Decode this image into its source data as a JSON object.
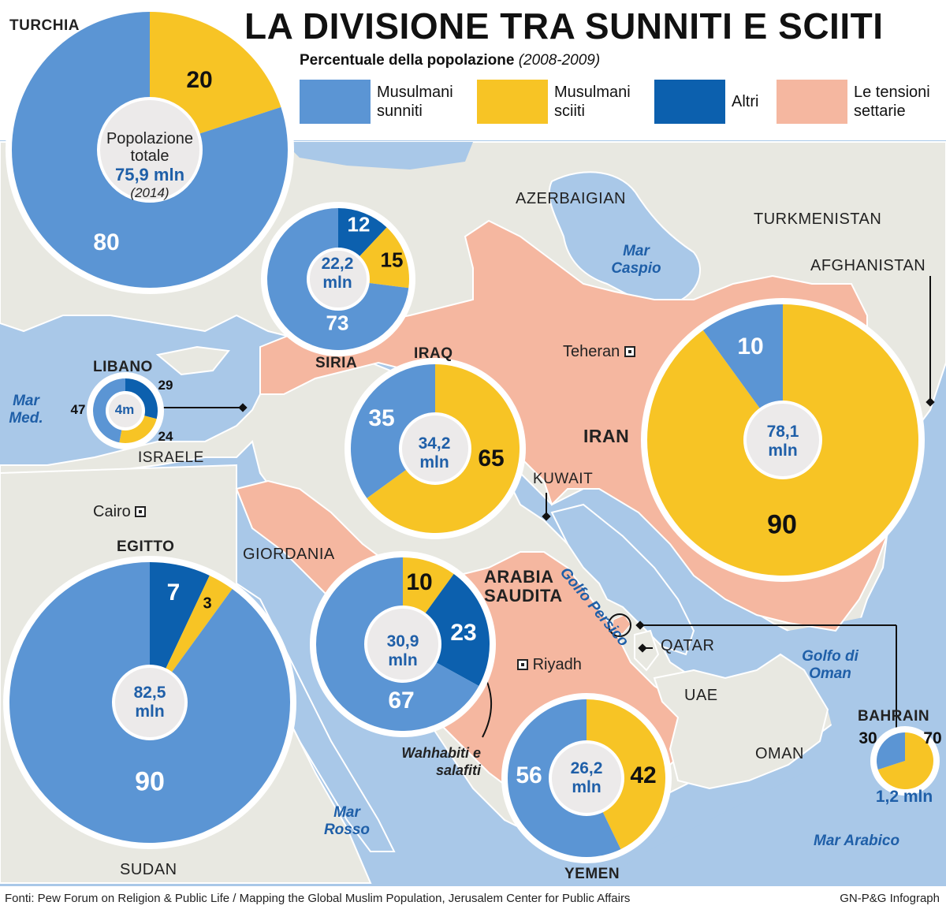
{
  "title": "LA DIVISIONE TRA SUNNITI E SCIITI",
  "subtitle": {
    "main": "Percentuale della popolazione",
    "period": "(2008-2009)"
  },
  "colors": {
    "sunni": "#5b95d4",
    "shia": "#f7c425",
    "other": "#0c60ae",
    "tension": "#f5b7a0",
    "sea": "#a9c8e8",
    "land": "#e8e8e1",
    "border": "#ffffff"
  },
  "legend": [
    {
      "key": "sunni",
      "label": "Musulmani sunniti"
    },
    {
      "key": "shia",
      "label": "Musulmani sciiti"
    },
    {
      "key": "other",
      "label": "Altri"
    },
    {
      "key": "tension",
      "label": "Le tensioni settarie"
    }
  ],
  "map": {
    "countries": {
      "turchia": "TURCHIA",
      "siria": "SIRIA",
      "iraq": "IRAQ",
      "iran": "IRAN",
      "libano": "LIBANO",
      "israele": "ISRAELE",
      "egitto": "EGITTO",
      "giordania": "GIORDANIA",
      "arabia": "ARABIA SAUDITA",
      "kuwait": "KUWAIT",
      "qatar": "QATAR",
      "uae": "UAE",
      "oman": "OMAN",
      "yemen": "YEMEN",
      "bahrain": "BAHRAIN",
      "sudan": "SUDAN",
      "azerbaigian": "AZERBAIGIAN",
      "turkmenistan": "TURKMENISTAN",
      "afghanistan": "AFGHANISTAN"
    },
    "seas": {
      "caspio": "Mar Caspio",
      "med": "Mar Med.",
      "rosso": "Mar Rosso",
      "persico": "Golfo Persico",
      "oman": "Golfo di Oman",
      "arabico": "Mar Arabico"
    },
    "cities": {
      "teheran": "Teheran",
      "cairo": "Cairo",
      "riyadh": "Riyadh"
    },
    "annotation": "Wahhabiti e salafiti"
  },
  "chart_data": {
    "type": "pie",
    "title": "LA DIVISIONE TRA SUNNITI E SCIITI",
    "subtitle": "Percentuale della popolazione (2008-2009)",
    "charts": [
      {
        "country": "TURCHIA",
        "sunni": 80,
        "shia": 20,
        "total": "75,9 mln",
        "total_label": "Popolazione totale",
        "total_year": "(2014)"
      },
      {
        "country": "SIRIA",
        "sunni": 73,
        "shia": 15,
        "other": 12,
        "total": "22,2 mln"
      },
      {
        "country": "IRAQ",
        "sunni": 35,
        "shia": 65,
        "total": "34,2 mln"
      },
      {
        "country": "IRAN",
        "sunni": 10,
        "shia": 90,
        "total": "78,1 mln"
      },
      {
        "country": "LIBANO",
        "sunni": 47,
        "shia": 24,
        "other": 29,
        "total": "4m"
      },
      {
        "country": "EGITTO",
        "sunni": 90,
        "shia": 3,
        "other": 7,
        "total": "82,5 mln"
      },
      {
        "country": "ARABIA SAUDITA",
        "sunni": 67,
        "shia": 10,
        "other": 23,
        "total": "30,9 mln"
      },
      {
        "country": "YEMEN",
        "sunni": 56,
        "shia": 42,
        "total": "26,2 mln"
      },
      {
        "country": "BAHRAIN",
        "sunni": 30,
        "shia": 70,
        "total": "1,2 mln"
      }
    ]
  },
  "footer": {
    "sources": "Fonti: Pew Forum on Religion & Public Life / Mapping the Global Muslim Population, Jerusalem Center for Public Affairs",
    "credit": "GN-P&G Infograph"
  }
}
